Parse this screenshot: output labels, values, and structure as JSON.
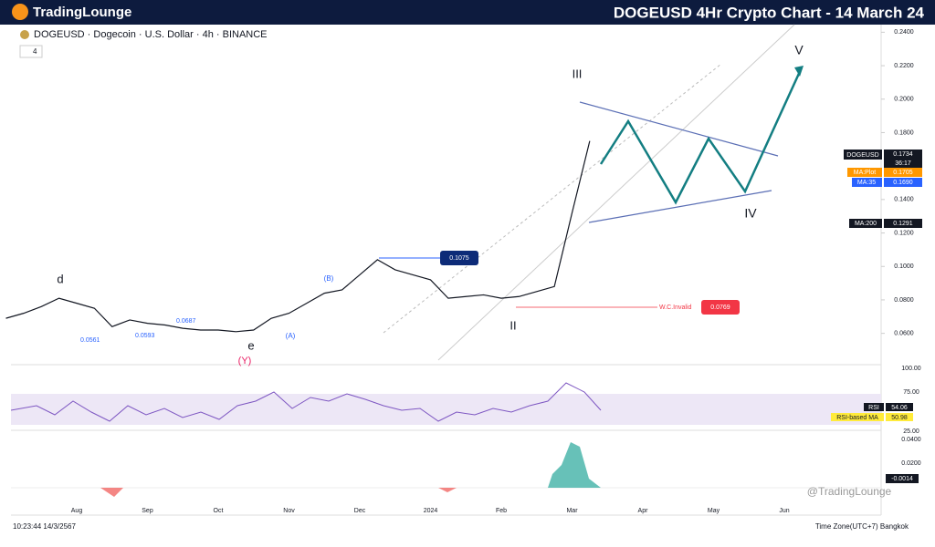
{
  "header": {
    "brand": "TradingLounge",
    "title": "DOGEUSD 4Hr Crypto Chart - 14 March 24"
  },
  "symbol_line": "DOGEUSD · Dogecoin · U.S. Dollar · 4h · BINANCE",
  "indicator_count": "4",
  "chart_data": {
    "type": "line",
    "categories": [
      null,
      null,
      null,
      null,
      "Aug",
      null,
      null,
      null,
      "Sep",
      null,
      null,
      null,
      "Oct",
      null,
      null,
      null,
      "Nov",
      null,
      null,
      null,
      "Dec",
      null,
      null,
      null,
      "2024",
      null,
      null,
      null,
      "Feb",
      null,
      null,
      null,
      "Mar",
      null,
      null,
      null,
      "Apr",
      null,
      null,
      null,
      "May",
      null,
      null,
      null,
      "Jun"
    ],
    "series": [
      {
        "name": "DOGEUSD",
        "color": "#131722",
        "values": [
          0.069,
          0.072,
          0.076,
          0.081,
          0.078,
          0.075,
          0.064,
          0.068,
          0.066,
          0.065,
          0.063,
          0.062,
          0.062,
          0.061,
          0.062,
          0.069,
          0.072,
          0.078,
          0.084,
          0.086,
          0.095,
          0.104,
          0.098,
          0.095,
          0.092,
          0.081,
          0.082,
          0.083,
          0.081,
          0.082,
          0.085,
          0.088,
          0.132,
          0.175,
          null,
          null,
          null,
          null,
          null,
          null,
          null,
          null,
          null,
          null,
          null
        ]
      }
    ],
    "ylim": [
      0.05,
      0.25
    ],
    "yticks": [
      {
        "value": 0.06,
        "label": "0.0600"
      },
      {
        "value": 0.08,
        "label": "0.0800"
      },
      {
        "value": 0.1,
        "label": "0.1000"
      },
      {
        "value": 0.12,
        "label": "0.1200"
      },
      {
        "value": 0.14,
        "label": "0.1400"
      },
      {
        "value": 0.18,
        "label": "0.1800"
      },
      {
        "value": 0.2,
        "label": "0.2000"
      },
      {
        "value": 0.22,
        "label": "0.2200"
      },
      {
        "value": 0.24,
        "label": "0.2400"
      }
    ]
  },
  "price_tags": {
    "symbol": "DOGEUSD",
    "price": "0.1734",
    "countdown": "36:17",
    "ma_plot": "MA:Plot",
    "ma_plot_value": "0.1705",
    "ma35": "MA:35",
    "ma35_value": "0.1690",
    "ma200": "MA:200",
    "ma200_value": "0.1291"
  },
  "waves": {
    "w3": "III",
    "w5": "V",
    "w4": "IV",
    "w2": "II",
    "d": "d",
    "level_1075": "0.1075",
    "invalid": "W.C.Invalid",
    "invalid_value": "0.0769",
    "level_0687": "0.0687",
    "level_0593": "0.0593",
    "level_0561": "0.0561",
    "B": "(B)",
    "A": "(A)",
    "Y": "(Y)",
    "e": "e"
  },
  "rsi": {
    "ticks": [
      "100.00",
      "75.00",
      "25.00"
    ],
    "rsi_label": "RSI",
    "rsi_value": "54.06",
    "ma_label": "RSI-based MA",
    "ma_value": "50.98"
  },
  "macd": {
    "ticks": [
      "0.0400",
      "0.0200"
    ],
    "value": "-0.0014"
  },
  "footer": {
    "time": "10:23:44 14/3/2567",
    "timezone": "Time Zone(UTC+7) Bangkok",
    "watermark": "@TradingLounge"
  }
}
